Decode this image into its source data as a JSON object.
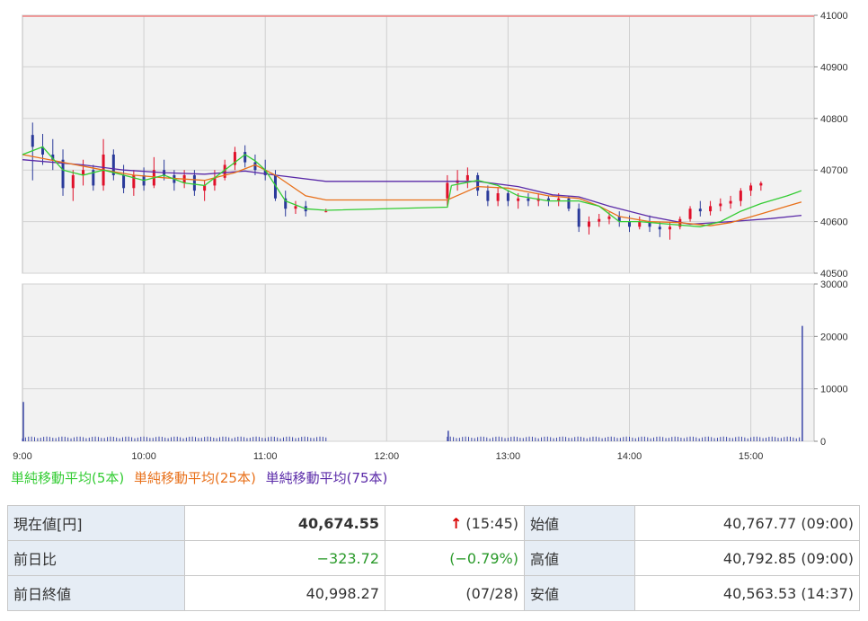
{
  "chart_data": [
    {
      "type": "candlestick",
      "x_ticks": [
        "9:00",
        "10:00",
        "11:00",
        "12:00",
        "13:00",
        "14:00",
        "15:00"
      ],
      "y_ticks": [
        "41000",
        "40900",
        "40800",
        "40700",
        "40600",
        "40500"
      ],
      "ylim": [
        40500,
        41000
      ],
      "xlim_minutes": [
        0,
        385
      ],
      "reference_line": 40998.27,
      "reference_color": "#f08080",
      "up_color": "#e0102a",
      "down_color": "#2a3a9a",
      "grid": true,
      "ohlc": [
        [
          5,
          40768,
          40792,
          40680,
          40745
        ],
        [
          10,
          40745,
          40770,
          40710,
          40730
        ],
        [
          15,
          40730,
          40760,
          40700,
          40720
        ],
        [
          20,
          40720,
          40740,
          40650,
          40665
        ],
        [
          25,
          40665,
          40700,
          40640,
          40690
        ],
        [
          30,
          40690,
          40720,
          40670,
          40700
        ],
        [
          35,
          40700,
          40710,
          40660,
          40670
        ],
        [
          40,
          40670,
          40760,
          40660,
          40730
        ],
        [
          45,
          40730,
          40740,
          40680,
          40690
        ],
        [
          50,
          40690,
          40710,
          40655,
          40665
        ],
        [
          55,
          40665,
          40700,
          40650,
          40690
        ],
        [
          60,
          40690,
          40705,
          40660,
          40670
        ],
        [
          65,
          40670,
          40725,
          40665,
          40700
        ],
        [
          70,
          40700,
          40720,
          40680,
          40690
        ],
        [
          75,
          40690,
          40700,
          40660,
          40675
        ],
        [
          80,
          40675,
          40700,
          40665,
          40690
        ],
        [
          85,
          40690,
          40700,
          40650,
          40660
        ],
        [
          90,
          40660,
          40680,
          40640,
          40670
        ],
        [
          95,
          40670,
          40700,
          40660,
          40685
        ],
        [
          100,
          40685,
          40720,
          40680,
          40710
        ],
        [
          105,
          40710,
          40745,
          40700,
          40735
        ],
        [
          110,
          40735,
          40748,
          40705,
          40715
        ],
        [
          115,
          40715,
          40730,
          40690,
          40700
        ],
        [
          120,
          40700,
          40720,
          40680,
          40690
        ],
        [
          125,
          40690,
          40700,
          40640,
          40645
        ],
        [
          130,
          40645,
          40660,
          40610,
          40625
        ],
        [
          135,
          40625,
          40640,
          40615,
          40630
        ],
        [
          140,
          40630,
          40640,
          40610,
          40620
        ],
        [
          150,
          40620,
          40625,
          40618,
          40620
        ]
      ],
      "ohlc_pm": [
        [
          0,
          40645,
          40690,
          40630,
          40675
        ],
        [
          5,
          40675,
          40700,
          40660,
          40680
        ],
        [
          10,
          40680,
          40705,
          40665,
          40690
        ],
        [
          15,
          40690,
          40695,
          40650,
          40660
        ],
        [
          20,
          40660,
          40670,
          40630,
          40640
        ],
        [
          25,
          40640,
          40665,
          40630,
          40655
        ],
        [
          30,
          40655,
          40660,
          40630,
          40640
        ],
        [
          35,
          40640,
          40655,
          40625,
          40645
        ],
        [
          40,
          40645,
          40655,
          40630,
          40640
        ],
        [
          45,
          40640,
          40655,
          40630,
          40645
        ],
        [
          50,
          40645,
          40650,
          40630,
          40640
        ],
        [
          55,
          40640,
          40655,
          40630,
          40645
        ],
        [
          60,
          40645,
          40650,
          40620,
          40625
        ],
        [
          65,
          40625,
          40635,
          40580,
          40590
        ],
        [
          70,
          40590,
          40610,
          40575,
          40600
        ],
        [
          75,
          40600,
          40615,
          40590,
          40605
        ],
        [
          80,
          40605,
          40618,
          40595,
          40610
        ],
        [
          85,
          40610,
          40620,
          40590,
          40600
        ],
        [
          90,
          40600,
          40612,
          40580,
          40590
        ],
        [
          95,
          40590,
          40610,
          40585,
          40600
        ],
        [
          100,
          40600,
          40612,
          40580,
          40590
        ],
        [
          105,
          40590,
          40600,
          40570,
          40585
        ],
        [
          110,
          40585,
          40600,
          40565,
          40590
        ],
        [
          115,
          40590,
          40610,
          40585,
          40605
        ],
        [
          120,
          40605,
          40630,
          40600,
          40625
        ],
        [
          125,
          40625,
          40640,
          40610,
          40620
        ],
        [
          130,
          40620,
          40640,
          40612,
          40630
        ],
        [
          135,
          40630,
          40645,
          40620,
          40635
        ],
        [
          140,
          40635,
          40650,
          40625,
          40640
        ],
        [
          145,
          40640,
          40665,
          40630,
          40660
        ],
        [
          150,
          40660,
          40675,
          40650,
          40670
        ],
        [
          155,
          40670,
          40678,
          40660,
          40674.55
        ]
      ],
      "sma5_am": [
        [
          0,
          40730
        ],
        [
          10,
          40745
        ],
        [
          20,
          40700
        ],
        [
          30,
          40690
        ],
        [
          40,
          40700
        ],
        [
          50,
          40690
        ],
        [
          60,
          40680
        ],
        [
          70,
          40690
        ],
        [
          80,
          40675
        ],
        [
          90,
          40670
        ],
        [
          100,
          40700
        ],
        [
          110,
          40730
        ],
        [
          115,
          40718
        ],
        [
          120,
          40700
        ],
        [
          125,
          40670
        ],
        [
          130,
          40640
        ],
        [
          140,
          40625
        ],
        [
          150,
          40622
        ]
      ],
      "sma5_mid": [
        [
          150,
          40622
        ],
        [
          210,
          40628
        ],
        [
          212,
          40670
        ]
      ],
      "sma5_pm": [
        [
          212,
          40670
        ],
        [
          225,
          40680
        ],
        [
          235,
          40670
        ],
        [
          245,
          40650
        ],
        [
          260,
          40640
        ],
        [
          275,
          40640
        ],
        [
          285,
          40630
        ],
        [
          295,
          40600
        ],
        [
          305,
          40600
        ],
        [
          320,
          40595
        ],
        [
          335,
          40590
        ],
        [
          345,
          40600
        ],
        [
          355,
          40620
        ],
        [
          365,
          40635
        ],
        [
          378,
          40650
        ],
        [
          385,
          40660
        ]
      ],
      "sma25": [
        [
          0,
          40730
        ],
        [
          20,
          40715
        ],
        [
          40,
          40700
        ],
        [
          55,
          40690
        ],
        [
          70,
          40685
        ],
        [
          90,
          40680
        ],
        [
          105,
          40695
        ],
        [
          115,
          40710
        ],
        [
          125,
          40690
        ],
        [
          140,
          40650
        ],
        [
          150,
          40642
        ],
        [
          210,
          40642
        ],
        [
          225,
          40668
        ],
        [
          240,
          40665
        ],
        [
          260,
          40650
        ],
        [
          275,
          40645
        ],
        [
          285,
          40630
        ],
        [
          295,
          40610
        ],
        [
          310,
          40600
        ],
        [
          325,
          40598
        ],
        [
          340,
          40592
        ],
        [
          350,
          40598
        ],
        [
          365,
          40615
        ],
        [
          378,
          40630
        ],
        [
          385,
          40638
        ]
      ],
      "sma75": [
        [
          0,
          40720
        ],
        [
          30,
          40710
        ],
        [
          50,
          40700
        ],
        [
          70,
          40695
        ],
        [
          90,
          40692
        ],
        [
          110,
          40698
        ],
        [
          125,
          40690
        ],
        [
          150,
          40678
        ],
        [
          210,
          40678
        ],
        [
          225,
          40678
        ],
        [
          245,
          40668
        ],
        [
          262,
          40652
        ],
        [
          275,
          40648
        ],
        [
          290,
          40630
        ],
        [
          310,
          40610
        ],
        [
          330,
          40595
        ],
        [
          350,
          40600
        ],
        [
          370,
          40606
        ],
        [
          385,
          40612
        ]
      ]
    },
    {
      "type": "bar",
      "x_ticks": [
        "9:00",
        "10:00",
        "11:00",
        "12:00",
        "13:00",
        "14:00",
        "15:00"
      ],
      "y_ticks": [
        "30000",
        "20000",
        "10000",
        "0"
      ],
      "ylim": [
        0,
        30000
      ],
      "bar_color": "#3a46a8",
      "spikes": [
        [
          0,
          7500
        ],
        [
          210,
          2000
        ],
        [
          385,
          22000
        ]
      ],
      "base_volume": 900,
      "gap_minutes": [
        150,
        210
      ]
    }
  ],
  "legend": {
    "sma5": "単純移動平均(5本)",
    "sma25": "単純移動平均(25本)",
    "sma75": "単純移動平均(75本)",
    "sma5_color": "#33cc33",
    "sma25_color": "#e8701a",
    "sma75_color": "#5a2aa8"
  },
  "table": {
    "current_label": "現在値[円]",
    "current_value": "40,674.55",
    "current_arrow": "↑",
    "current_time": "(15:45)",
    "open_label": "始値",
    "open_value": "40,767.77 (09:00)",
    "change_label": "前日比",
    "change_value": "−323.72",
    "change_pct": "(−0.79%)",
    "high_label": "高値",
    "high_value": "40,792.85 (09:00)",
    "prev_close_label": "前日終値",
    "prev_close_value": "40,998.27",
    "prev_close_date": "(07/28)",
    "low_label": "安値",
    "low_value": "40,563.53 (14:37)"
  }
}
